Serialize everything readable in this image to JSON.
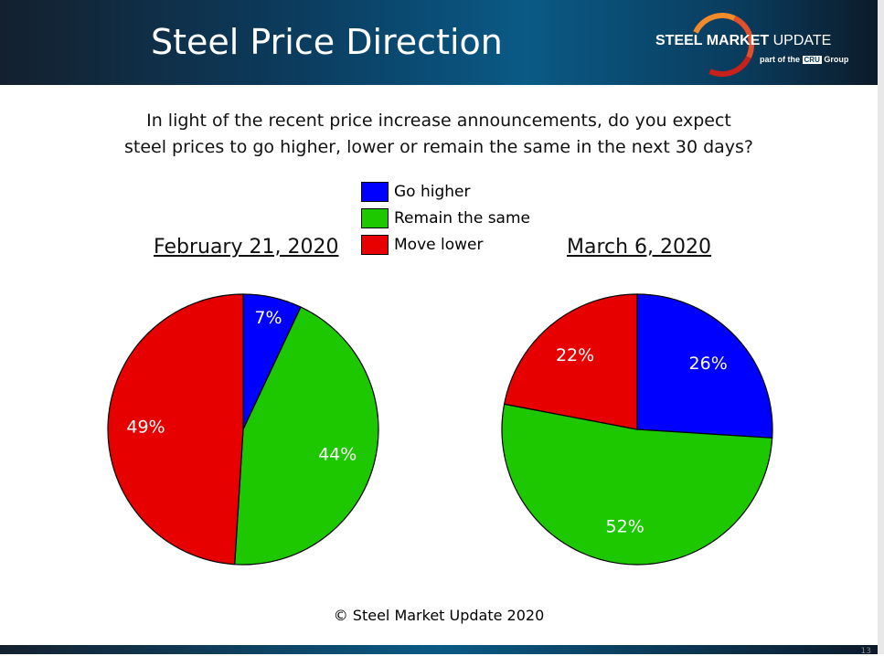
{
  "header": {
    "title": "Steel Price Direction",
    "logo": {
      "name_bold": "STEEL MARKET",
      "name_light": "UPDATE",
      "sub_prefix": "part of the",
      "sub_badge": "CRU",
      "sub_suffix": "Group"
    }
  },
  "question": [
    "In light of the recent price increase announcements, do you expect",
    "steel prices to go higher, lower or remain the same in the next 30 days?"
  ],
  "footer": "© Steel Market Update 2020",
  "page_number": "13",
  "chart_data": [
    {
      "type": "pie",
      "title": "February 21, 2020",
      "categories": [
        "Go higher",
        "Remain the same",
        "Move lower"
      ],
      "values": [
        7,
        44,
        49
      ],
      "labels": [
        "7%",
        "44%",
        "49%"
      ],
      "colors": [
        "#0000ff",
        "#1ec800",
        "#e60000"
      ],
      "legend": "top-center"
    },
    {
      "type": "pie",
      "title": "March 6, 2020",
      "categories": [
        "Go higher",
        "Remain the same",
        "Move lower"
      ],
      "values": [
        26,
        52,
        22
      ],
      "labels": [
        "26%",
        "52%",
        "22%"
      ],
      "colors": [
        "#0000ff",
        "#1ec800",
        "#e60000"
      ],
      "legend": "top-center"
    }
  ]
}
